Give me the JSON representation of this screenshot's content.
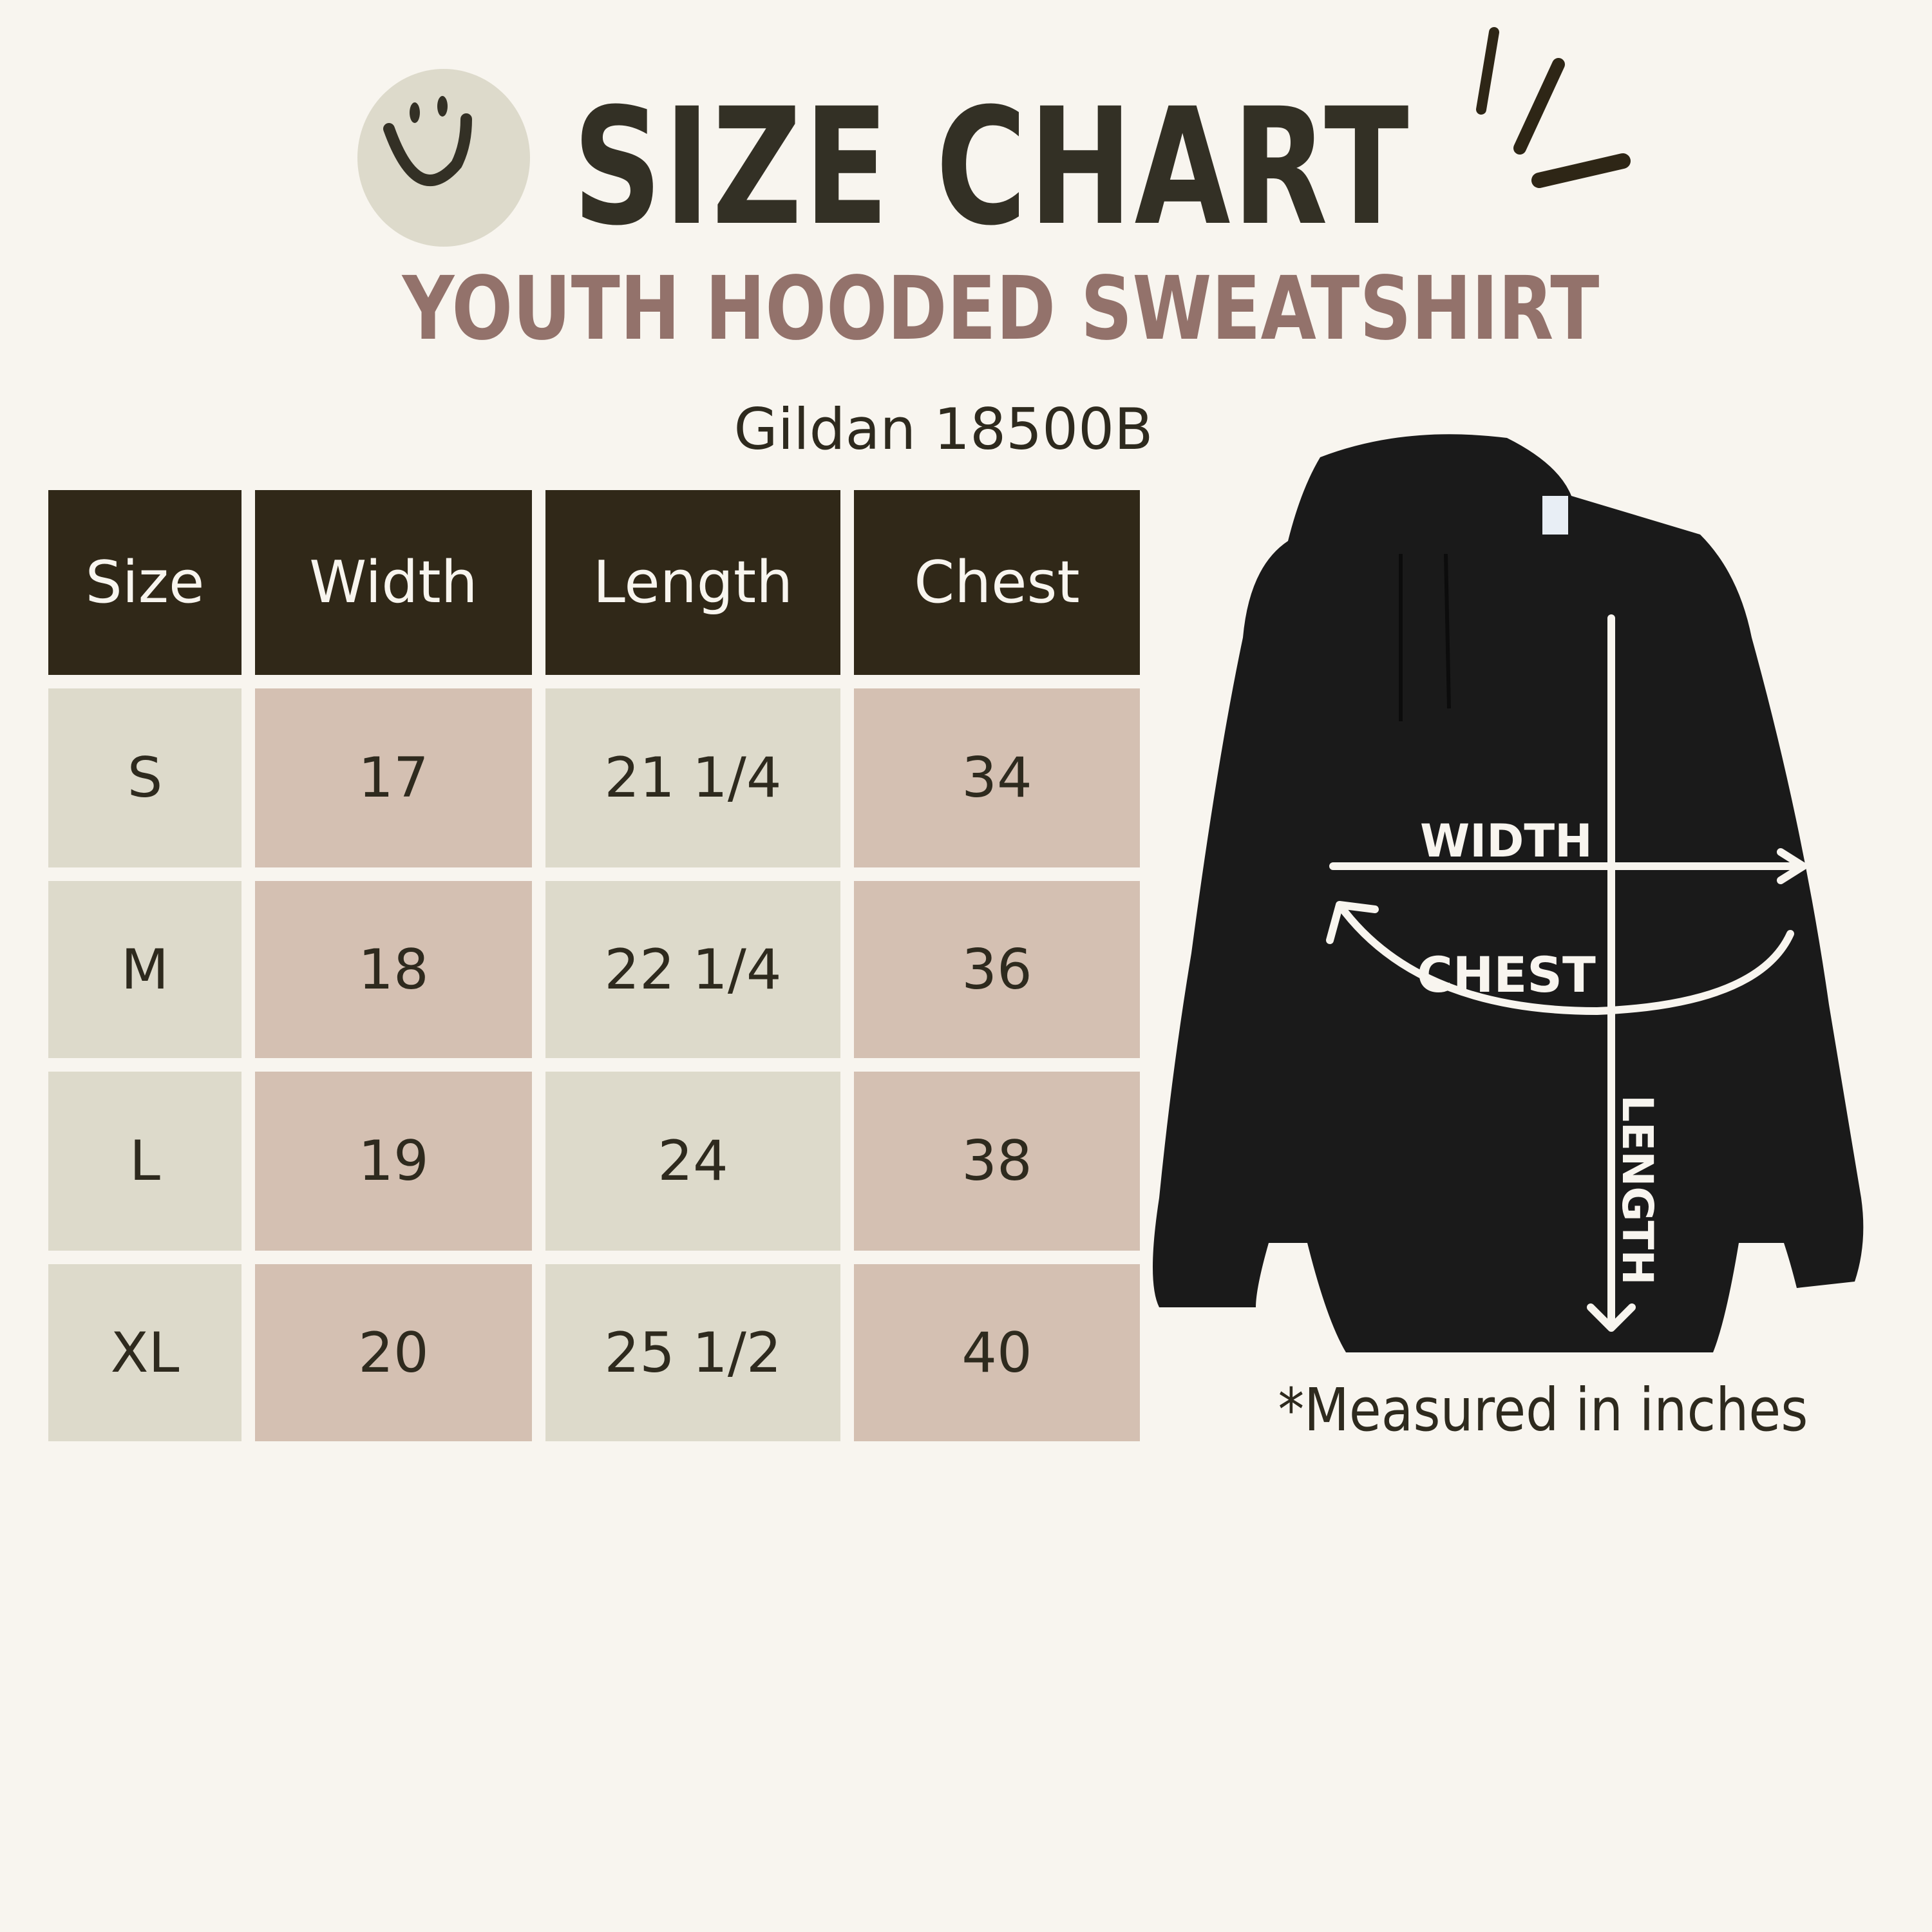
{
  "header": {
    "title": "SIZE CHART",
    "subtitle": "YOUTH HOODED SWEATSHIRT",
    "brand_model": "Gildan 18500B",
    "decor_icon": "smiley-face-icon"
  },
  "colors": {
    "background": "#f8f5ef",
    "header_cell": "#302818",
    "light_cell": "#dddacb",
    "pink_cell": "#d4c0b2",
    "title": "#333025",
    "subtitle": "#93726b"
  },
  "table": {
    "columns": [
      "Size",
      "Width",
      "Length",
      "Chest"
    ],
    "rows": [
      [
        "S",
        "17",
        "21 1/4",
        "34"
      ],
      [
        "M",
        "18",
        "22 1/4",
        "36"
      ],
      [
        "L",
        "19",
        "24",
        "38"
      ],
      [
        "XL",
        "20",
        "25 1/2",
        "40"
      ]
    ]
  },
  "diagram": {
    "width_label": "WIDTH",
    "chest_label": "CHEST",
    "length_label": "LENGTH"
  },
  "footnote": "*Measured in inches"
}
